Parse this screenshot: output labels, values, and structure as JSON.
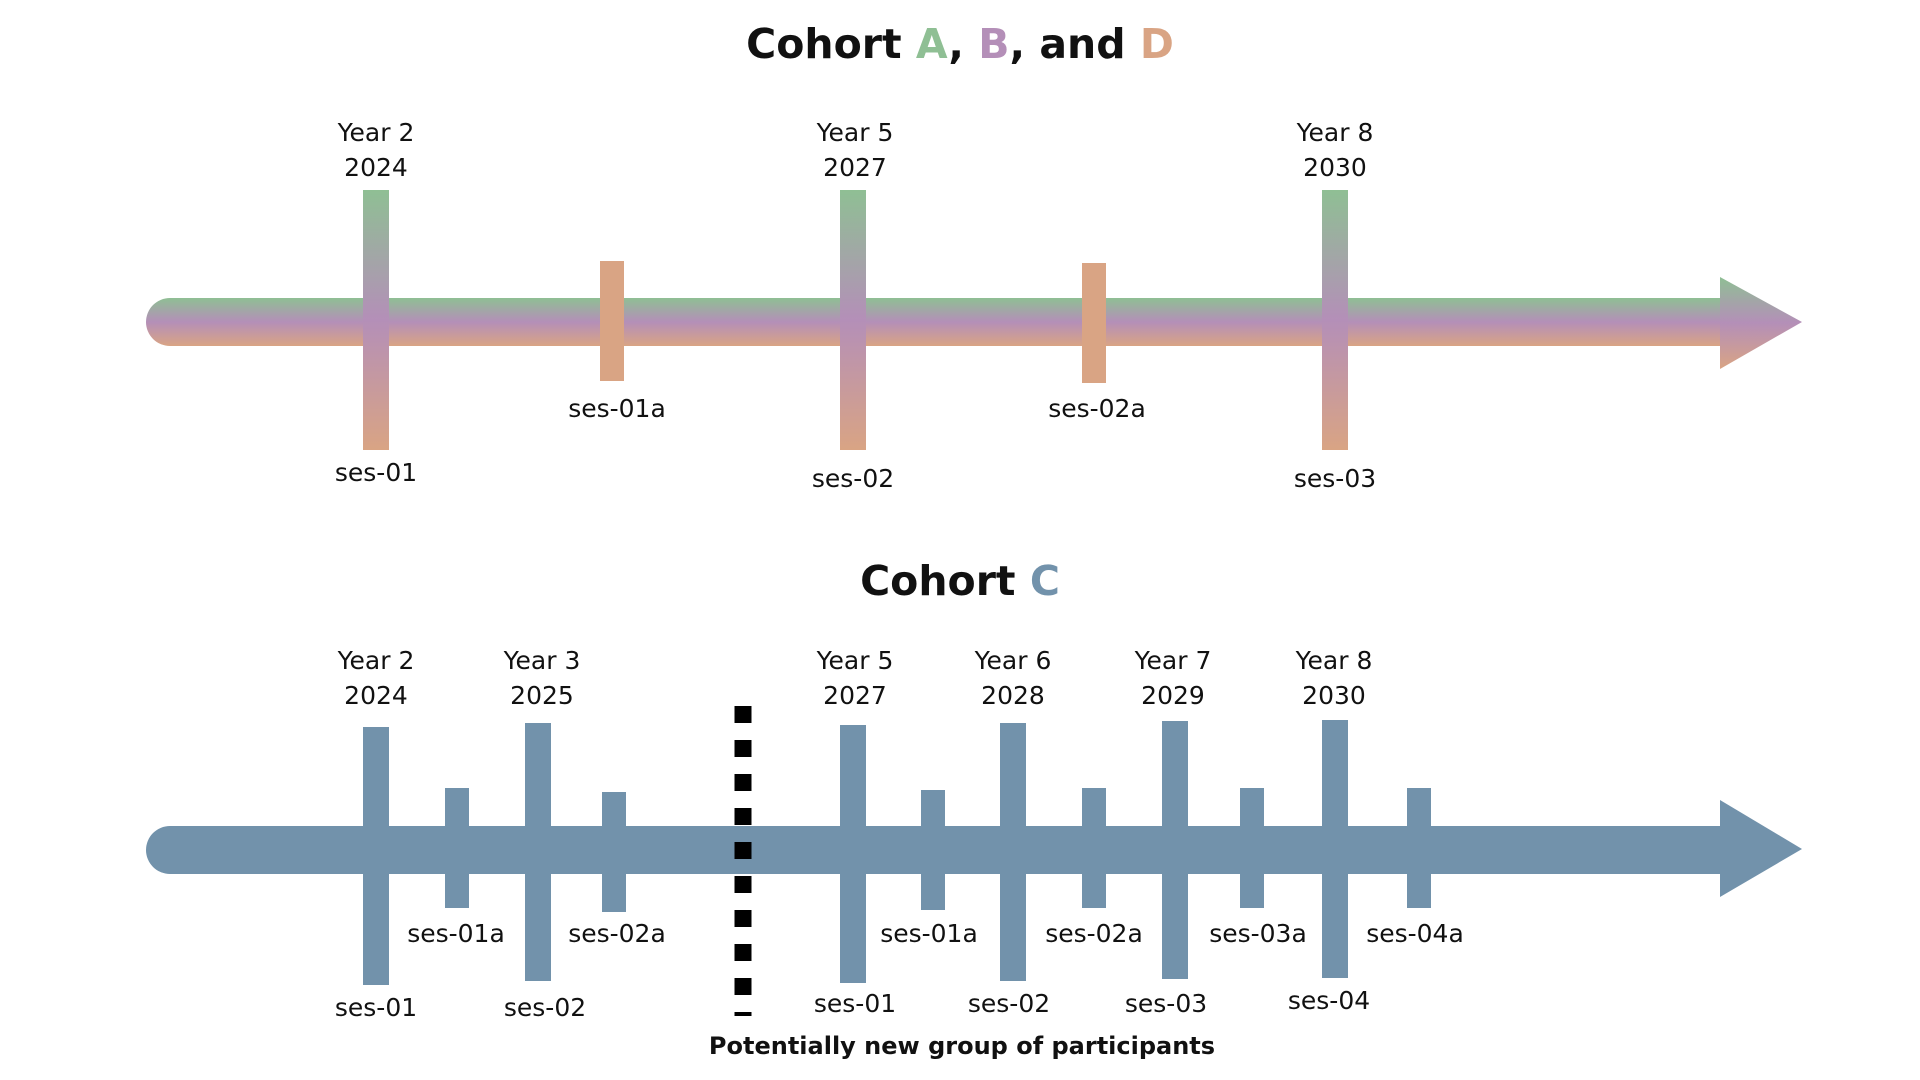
{
  "colors": {
    "cohort_a": "#8fbf94",
    "cohort_b": "#b48fb8",
    "cohort_d": "#d9a484",
    "cohort_c": "#7292ab",
    "text": "#111111",
    "divider": "#000000"
  },
  "top": {
    "title_prefix": "Cohort ",
    "title_a": "A",
    "title_sep1": ", ",
    "title_b": "B",
    "title_sep2": ", and ",
    "title_d": "D",
    "years": [
      {
        "year": "Year 2",
        "date": "2024",
        "session": "ses-01"
      },
      {
        "year": "Year 5",
        "date": "2027",
        "session": "ses-02"
      },
      {
        "year": "Year 8",
        "date": "2030",
        "session": "ses-03"
      }
    ],
    "interim": [
      {
        "session": "ses-01a"
      },
      {
        "session": "ses-02a"
      }
    ]
  },
  "bottom": {
    "title_prefix": "Cohort ",
    "title_c": "C",
    "years": [
      {
        "year": "Year 2",
        "date": "2024",
        "session": "ses-01"
      },
      {
        "year": "Year 3",
        "date": "2025",
        "session": "ses-02"
      },
      {
        "year": "Year 5",
        "date": "2027",
        "session": "ses-01"
      },
      {
        "year": "Year 6",
        "date": "2028",
        "session": "ses-02"
      },
      {
        "year": "Year 7",
        "date": "2029",
        "session": "ses-03"
      },
      {
        "year": "Year 8",
        "date": "2030",
        "session": "ses-04"
      }
    ],
    "interim": [
      {
        "session": "ses-01a"
      },
      {
        "session": "ses-02a"
      },
      {
        "session": "ses-01a"
      },
      {
        "session": "ses-02a"
      },
      {
        "session": "ses-03a"
      },
      {
        "session": "ses-04a"
      }
    ],
    "divider_note": "Potentially new group of participants"
  }
}
